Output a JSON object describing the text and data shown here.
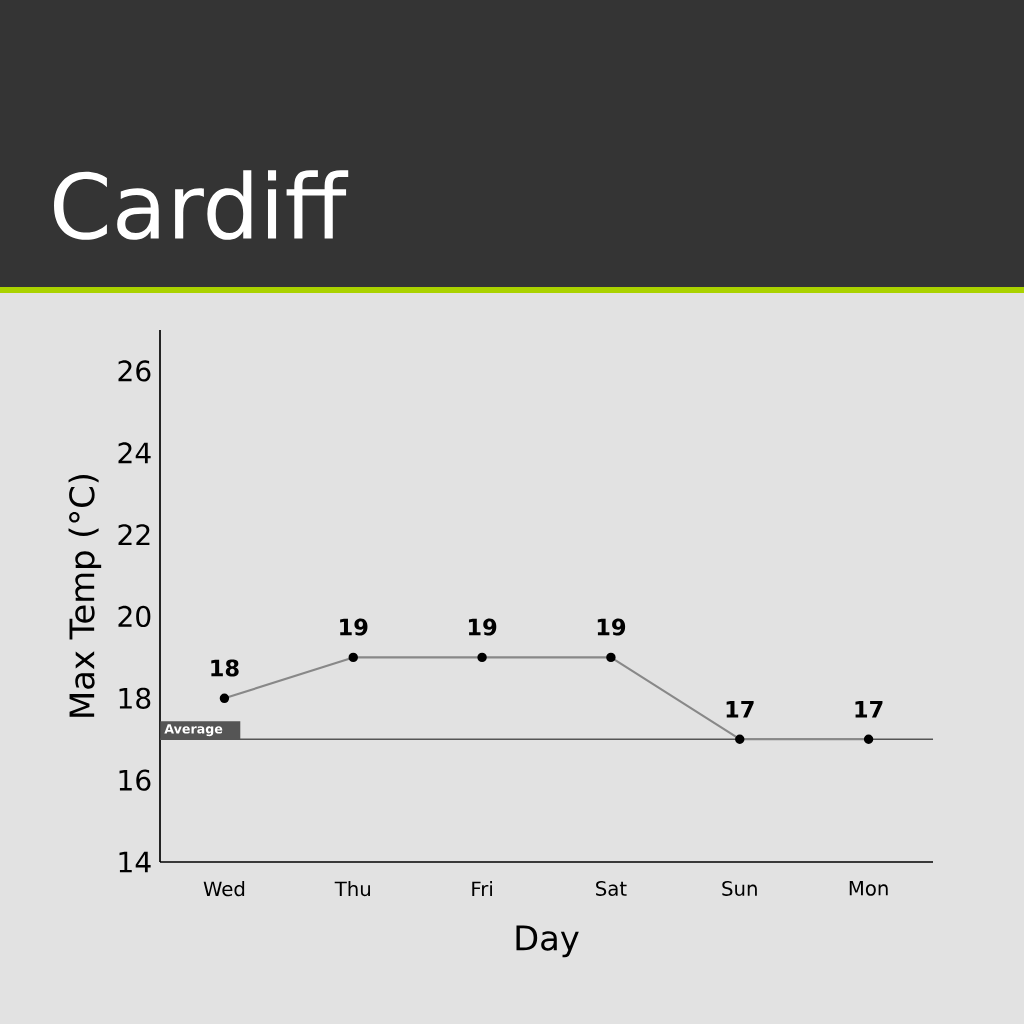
{
  "chart_data": {
    "type": "line",
    "title": "Cardiff",
    "xlabel": "Day",
    "ylabel": "Max Temp (°C)",
    "categories": [
      "Wed",
      "Thu",
      "Fri",
      "Sat",
      "Sun",
      "Mon"
    ],
    "series": [
      {
        "color": "#888888",
        "values": [
          18,
          19,
          19,
          19,
          17,
          17
        ]
      }
    ],
    "ylim": [
      14,
      27
    ],
    "yticks": [
      14,
      16,
      18,
      20,
      22,
      24,
      26
    ],
    "ref_lines": [
      {
        "axis": "y",
        "value": 17,
        "label": "Average",
        "color": "#555555"
      }
    ],
    "data_labels": true,
    "marker": "circle",
    "grid": false
  }
}
